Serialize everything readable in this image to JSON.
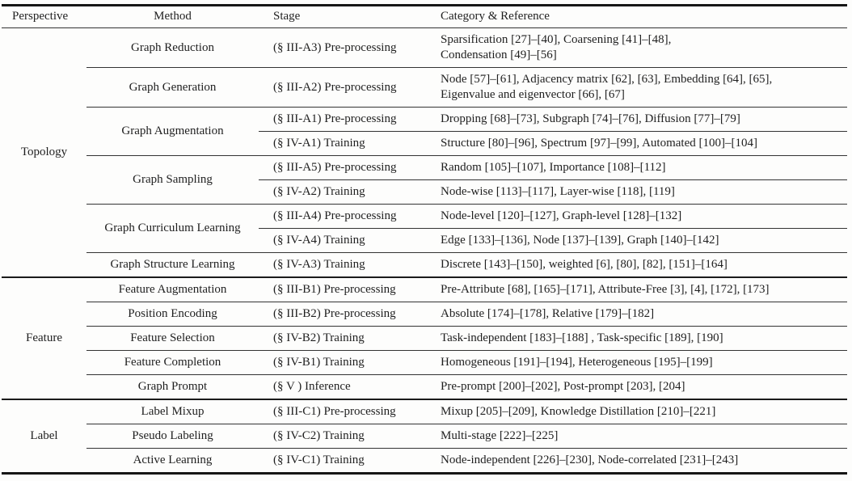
{
  "table": {
    "headers": [
      "Perspective",
      "Method",
      "Stage",
      "Category & Reference"
    ],
    "groups": [
      {
        "perspective": "Topology",
        "methods": [
          {
            "name": "Graph Reduction",
            "rows": [
              {
                "stage": "(§ III-A3) Pre-processing",
                "category_lines": [
                  "Sparsification [27]–[40], Coarsening [41]–[48],",
                  "Condensation [49]–[56]"
                ]
              }
            ]
          },
          {
            "name": "Graph Generation",
            "rows": [
              {
                "stage": "(§ III-A2) Pre-processing",
                "category_lines": [
                  "Node [57]–[61], Adjacency matrix [62], [63], Embedding [64], [65],",
                  "Eigenvalue and eigenvector [66], [67]"
                ]
              }
            ]
          },
          {
            "name": "Graph Augmentation",
            "rows": [
              {
                "stage": "(§ III-A1) Pre-processing",
                "category_lines": [
                  "Dropping [68]–[73], Subgraph [74]–[76], Diffusion [77]–[79]"
                ]
              },
              {
                "stage": "(§ IV-A1) Training",
                "category_lines": [
                  "Structure [80]–[96], Spectrum [97]–[99], Automated [100]–[104]"
                ]
              }
            ]
          },
          {
            "name": "Graph Sampling",
            "rows": [
              {
                "stage": "(§ III-A5) Pre-processing",
                "category_lines": [
                  "Random [105]–[107], Importance [108]–[112]"
                ]
              },
              {
                "stage": "(§ IV-A2) Training",
                "category_lines": [
                  "Node-wise [113]–[117], Layer-wise [118], [119]"
                ]
              }
            ]
          },
          {
            "name": "Graph Curriculum Learning",
            "rows": [
              {
                "stage": "(§ III-A4) Pre-processing",
                "category_lines": [
                  "Node-level [120]–[127], Graph-level [128]–[132]"
                ]
              },
              {
                "stage": "(§ IV-A4) Training",
                "category_lines": [
                  "Edge [133]–[136], Node [137]–[139], Graph [140]–[142]"
                ]
              }
            ]
          },
          {
            "name": "Graph Structure Learning",
            "rows": [
              {
                "stage": "(§ IV-A3) Training",
                "category_lines": [
                  "Discrete [143]–[150], weighted [6], [80], [82], [151]–[164]"
                ]
              }
            ]
          }
        ]
      },
      {
        "perspective": "Feature",
        "methods": [
          {
            "name": "Feature Augmentation",
            "rows": [
              {
                "stage": "(§ III-B1) Pre-processing",
                "category_lines": [
                  "Pre-Attribute [68], [165]–[171], Attribute-Free [3], [4], [172], [173]"
                ]
              }
            ]
          },
          {
            "name": "Position Encoding",
            "rows": [
              {
                "stage": "(§ III-B2) Pre-processing",
                "category_lines": [
                  "Absolute [174]–[178], Relative [179]–[182]"
                ]
              }
            ]
          },
          {
            "name": "Feature Selection",
            "rows": [
              {
                "stage": "(§ IV-B2) Training",
                "category_lines": [
                  "Task-independent [183]–[188] , Task-specific [189], [190]"
                ]
              }
            ]
          },
          {
            "name": "Feature Completion",
            "rows": [
              {
                "stage": "(§ IV-B1) Training",
                "category_lines": [
                  "Homogeneous [191]–[194], Heterogeneous [195]–[199]"
                ]
              }
            ]
          },
          {
            "name": "Graph Prompt",
            "rows": [
              {
                "stage": "(§ V ) Inference",
                "category_lines": [
                  "Pre-prompt [200]–[202], Post-prompt [203], [204]"
                ]
              }
            ]
          }
        ]
      },
      {
        "perspective": "Label",
        "methods": [
          {
            "name": "Label Mixup",
            "rows": [
              {
                "stage": "(§ III-C1) Pre-processing",
                "category_lines": [
                  "Mixup [205]–[209], Knowledge Distillation [210]–[221]"
                ]
              }
            ]
          },
          {
            "name": "Pseudo Labeling",
            "rows": [
              {
                "stage": "(§ IV-C2) Training",
                "category_lines": [
                  "Multi-stage [222]–[225]"
                ]
              }
            ]
          },
          {
            "name": "Active Learning",
            "rows": [
              {
                "stage": "(§ IV-C1) Training",
                "category_lines": [
                  "Node-independent [226]–[230], Node-correlated [231]–[243]"
                ]
              }
            ]
          }
        ]
      }
    ]
  }
}
